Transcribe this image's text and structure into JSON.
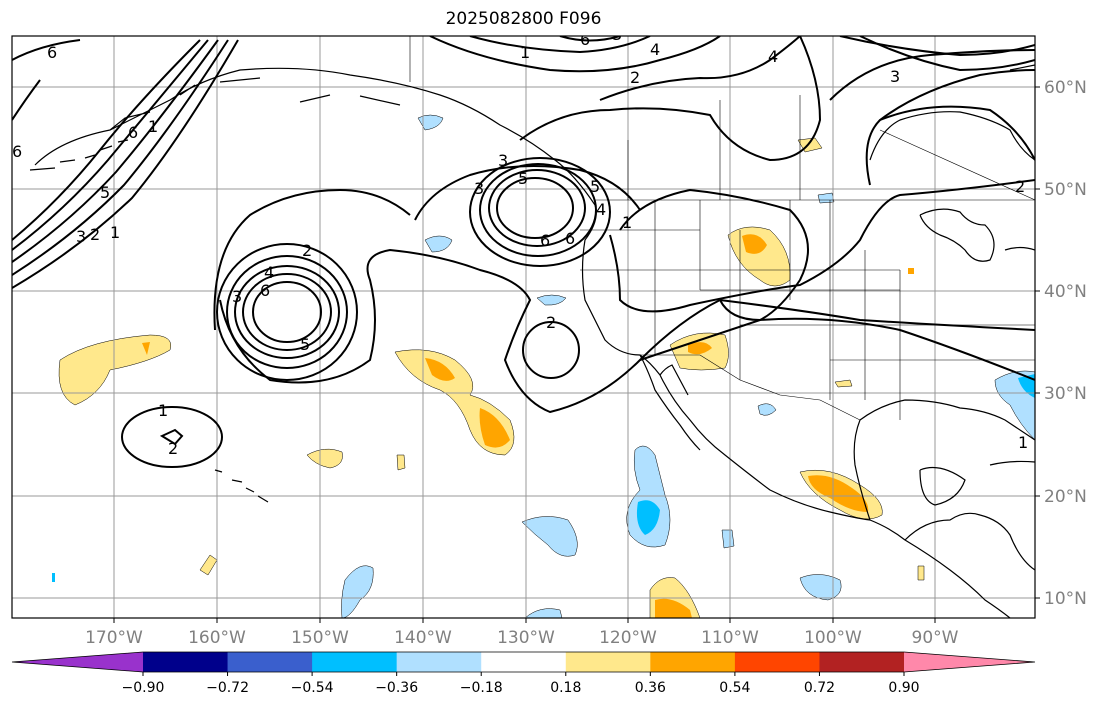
{
  "title": "2025082800 F096",
  "longitude_labels": [
    "170°W",
    "160°W",
    "150°W",
    "140°W",
    "130°W",
    "120°W",
    "110°W",
    "100°W",
    "90°W"
  ],
  "latitude_labels": [
    "60°N",
    "50°N",
    "40°N",
    "30°N",
    "20°N",
    "10°N"
  ],
  "colorbar": {
    "tick_labels": [
      "−0.90",
      "−0.72",
      "−0.54",
      "−0.36",
      "−0.18",
      "0.18",
      "0.36",
      "0.54",
      "0.72",
      "0.90"
    ],
    "colors": [
      "#9932cc",
      "#00008b",
      "#3a5fcd",
      "#00bfff",
      "#b0e0ff",
      "#ffffff",
      "#ffe88c",
      "#ffa500",
      "#ff4500",
      "#b22222",
      "#ff88aa"
    ]
  },
  "contour_labels": [
    "6",
    "4",
    "2",
    "6",
    "4",
    "2",
    "3",
    "3",
    "1",
    "5",
    "6",
    "3",
    "2",
    "1",
    "2",
    "4",
    "5",
    "6",
    "3",
    "3",
    "5",
    "6",
    "6",
    "1",
    "2",
    "1",
    "2",
    "1",
    "1",
    "6",
    "5",
    "4",
    "3"
  ],
  "shading_colors": {
    "light_yellow": "#ffe88c",
    "orange": "#ffa500",
    "light_blue": "#b0e0ff",
    "cyan": "#00bfff"
  }
}
